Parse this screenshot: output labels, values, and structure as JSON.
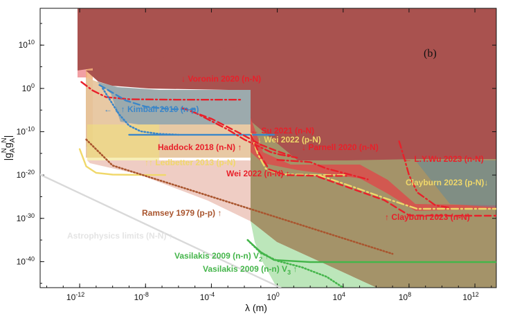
{
  "chart_data": {
    "type": "area",
    "panel_label": "(b)",
    "xlabel": "λ (m)",
    "ylabel": "|g_A^N g_A^N|",
    "xscale": "log",
    "yscale": "log",
    "xlim_log10": [
      -14.4,
      13.3
    ],
    "ylim_log10": [
      -46,
      18.5
    ],
    "x_ticks": [
      {
        "exp": -12,
        "label": "10-12"
      },
      {
        "exp": -8,
        "label": "10-8"
      },
      {
        "exp": -4,
        "label": "10-4"
      },
      {
        "exp": 0,
        "label": "100"
      },
      {
        "exp": 4,
        "label": "104"
      },
      {
        "exp": 8,
        "label": "108"
      },
      {
        "exp": 12,
        "label": "1012"
      }
    ],
    "y_ticks": [
      {
        "exp": 10,
        "label": "1010"
      },
      {
        "exp": 0,
        "label": "100"
      },
      {
        "exp": -10,
        "label": "10-10"
      },
      {
        "exp": -20,
        "label": "10-20"
      },
      {
        "exp": -30,
        "label": "10-30"
      },
      {
        "exp": -40,
        "label": "10-40"
      }
    ],
    "colors": {
      "red": "#e8202a",
      "blue": "#3b86c8",
      "yellow": "#f0d86a",
      "brown": "#a9552e",
      "green": "#44b54a",
      "gray": "#d9d9d9",
      "topfill": "#a9524f"
    },
    "series": [
      {
        "name": "Voronin 2020 (n-N)",
        "label": "↓ Voronin 2020 (n-N)",
        "color": "#e8202a",
        "dash": "dashdot",
        "points": [
          [
            -11.9,
            1.5
          ],
          [
            -11.2,
            -0.5
          ],
          [
            -10.4,
            -2.0
          ],
          [
            -9.0,
            -2.5
          ],
          [
            -6.0,
            -2.6
          ],
          [
            -2.2,
            -2.6
          ]
        ]
      },
      {
        "name": "Kimball 2010 (n-p)",
        "label": "← ↓ ↑ Kimball 2010 (n-p)",
        "color": "#3b86c8",
        "dash": "dashed",
        "points": [
          [
            -10.8,
            0.8
          ],
          [
            -10.0,
            -1.0
          ],
          [
            -9.2,
            -2.8
          ],
          [
            -8.0,
            -4.2
          ],
          [
            -6.5,
            -4.8
          ],
          [
            -5.0,
            -4.8
          ]
        ]
      },
      {
        "name": "Kimball 2010 solid",
        "label": "",
        "color": "#3b86c8",
        "dash": "solid",
        "points": [
          [
            -9.0,
            -10.7
          ],
          [
            -0.2,
            -10.7
          ]
        ]
      },
      {
        "name": "Kimball 2010 dotted",
        "label": "",
        "color": "#3b86c8",
        "dash": "dotted",
        "points": [
          [
            -10.6,
            0.0
          ],
          [
            -10.1,
            -3.0
          ],
          [
            -9.6,
            -6.0
          ],
          [
            -9.0,
            -8.6
          ],
          [
            -8.3,
            -9.9
          ],
          [
            -7.2,
            -10.5
          ],
          [
            -6.0,
            -10.7
          ]
        ]
      },
      {
        "name": "Su 2021 (n-N)",
        "label": "← Su 2021 (n-N)",
        "color": "#e8202a",
        "dash": "dashdot",
        "points": [
          [
            -5.2,
            -5.2
          ],
          [
            -3.0,
            -9.5
          ],
          [
            -2.0,
            -11.8
          ],
          [
            -0.4,
            -14.7
          ],
          [
            0.2,
            -15.3
          ],
          [
            1.2,
            -16.0
          ]
        ]
      },
      {
        "name": "Haddock 2018 (n-N)",
        "label": "Haddock 2018 (n-N) ↑",
        "color": "#e8202a",
        "dash": "dashed",
        "points": [
          [
            -5.8,
            -4.5
          ],
          [
            -4.0,
            -7.0
          ],
          [
            -2.2,
            -10.5
          ],
          [
            -1.0,
            -13.0
          ],
          [
            0.0,
            -14.5
          ],
          [
            0.8,
            -15.5
          ]
        ]
      },
      {
        "name": "Wei 2022 (p-N)",
        "label": "↓ Wei 2022 (p-N)",
        "color": "#f0d86a",
        "dash": "dashdot",
        "points": [
          [
            -1.6,
            -10.5
          ],
          [
            -1.2,
            -15.0
          ],
          [
            -0.7,
            -18.5
          ],
          [
            0.2,
            -19.8
          ],
          [
            2.5,
            -20.0
          ],
          [
            4.2,
            -20.0
          ]
        ]
      },
      {
        "name": "Wei 2022 (n-N)",
        "label": "Wei 2022 (n-N) ↑",
        "color": "#e8202a",
        "dash": "dashed",
        "points": [
          [
            -1.6,
            -10.8
          ],
          [
            -1.1,
            -15.0
          ],
          [
            -0.5,
            -18.7
          ],
          [
            0.5,
            -20.0
          ],
          [
            2.5,
            -20.2
          ],
          [
            4.2,
            -20.2
          ]
        ]
      },
      {
        "name": "Parnell 2020 (n-N)",
        "label": "↓ Parnell 2020 (n-N)",
        "color": "#e8202a",
        "dash": "dashdot",
        "points": [
          [
            0.0,
            -16.5
          ],
          [
            2.0,
            -17.0
          ],
          [
            3.0,
            -18.5
          ],
          [
            4.5,
            -20.0
          ],
          [
            5.5,
            -21.0
          ]
        ]
      },
      {
        "name": "L.Y.Wu 2023 (n-N)",
        "label": "← L.Y.Wu 2023 (n-N)",
        "color": "#e8202a",
        "dash": "dashdot",
        "points": [
          [
            7.4,
            -12.2
          ],
          [
            7.7,
            -16.0
          ],
          [
            8.0,
            -20.0
          ],
          [
            8.5,
            -24.0
          ],
          [
            9.6,
            -27.0
          ],
          [
            10.4,
            -27.5
          ]
        ]
      },
      {
        "name": "Clayburn 2023 (p-N)",
        "label": "Clayburn 2023 (p-N)↓",
        "color": "#f0d86a",
        "dash": "dashdot",
        "points": [
          [
            2.5,
            -20.0
          ],
          [
            4.5,
            -22.6
          ],
          [
            6.5,
            -25.3
          ],
          [
            8.5,
            -27.8
          ],
          [
            10.5,
            -27.8
          ],
          [
            13.3,
            -27.8
          ]
        ]
      },
      {
        "name": "Clayburn 2023 (n-N)",
        "label": "↑ Clayburn 2023 (n-N)",
        "color": "#e8202a",
        "dash": "dashed",
        "points": [
          [
            2.5,
            -20.4
          ],
          [
            4.5,
            -23.1
          ],
          [
            6.5,
            -25.8
          ],
          [
            8.0,
            -29.3
          ],
          [
            10.0,
            -29.4
          ],
          [
            13.3,
            -29.4
          ]
        ]
      },
      {
        "name": "Ledbetter 2013 (p-N)",
        "label": "↑↑ Ledbetter 2013 (p-N)",
        "color": "#f0d86a",
        "dash": "solid",
        "points": [
          [
            -12.0,
            -14.0
          ],
          [
            -11.6,
            -18.0
          ],
          [
            -11.0,
            -19.5
          ],
          [
            -10.0,
            -19.9
          ],
          [
            -8.0,
            -20.0
          ],
          [
            -6.8,
            -20.0
          ]
        ]
      },
      {
        "name": "Ramsey 1979 (p-p)",
        "label": "Ramsey 1979 (p-p) ↑",
        "color": "#a9552e",
        "dash": "dotted",
        "points": [
          [
            -11.6,
            -11.8
          ],
          [
            -10.0,
            -17.8
          ],
          [
            -5.0,
            -23.8
          ],
          [
            0.0,
            -29.8
          ],
          [
            5.0,
            -35.8
          ],
          [
            7.0,
            -38.2
          ]
        ]
      },
      {
        "name": "Vasilakis 2009 (n-n) V2",
        "label": "Vasilakis 2009 (n-n) V",
        "sub": "2",
        "tail": " ↑",
        "color": "#44b54a",
        "dash": "solid",
        "points": [
          [
            -1.8,
            -35.0
          ],
          [
            -1.0,
            -37.8
          ],
          [
            -0.2,
            -39.6
          ],
          [
            2.0,
            -40.1
          ],
          [
            13.3,
            -40.1
          ]
        ]
      },
      {
        "name": "Vasilakis 2009 (n-n) V3",
        "label": "Vasilakis 2009 (n-n) V",
        "sub": "3",
        "tail": " ↑",
        "color": "#44b54a",
        "dash": "dotted",
        "points": [
          [
            -1.8,
            -35.0
          ],
          [
            -1.0,
            -38.0
          ],
          [
            0.0,
            -39.8
          ],
          [
            1.5,
            -41.3
          ],
          [
            3.0,
            -43.5
          ],
          [
            4.0,
            -46.0
          ]
        ]
      },
      {
        "name": "Astrophysics limits (N-N)",
        "label": "Astrophysics limits (N-N) ↑",
        "color": "#d9d9d9",
        "dash": "solid",
        "points": [
          [
            -14.4,
            -19.9
          ],
          [
            0.2,
            -46.0
          ]
        ]
      }
    ]
  }
}
